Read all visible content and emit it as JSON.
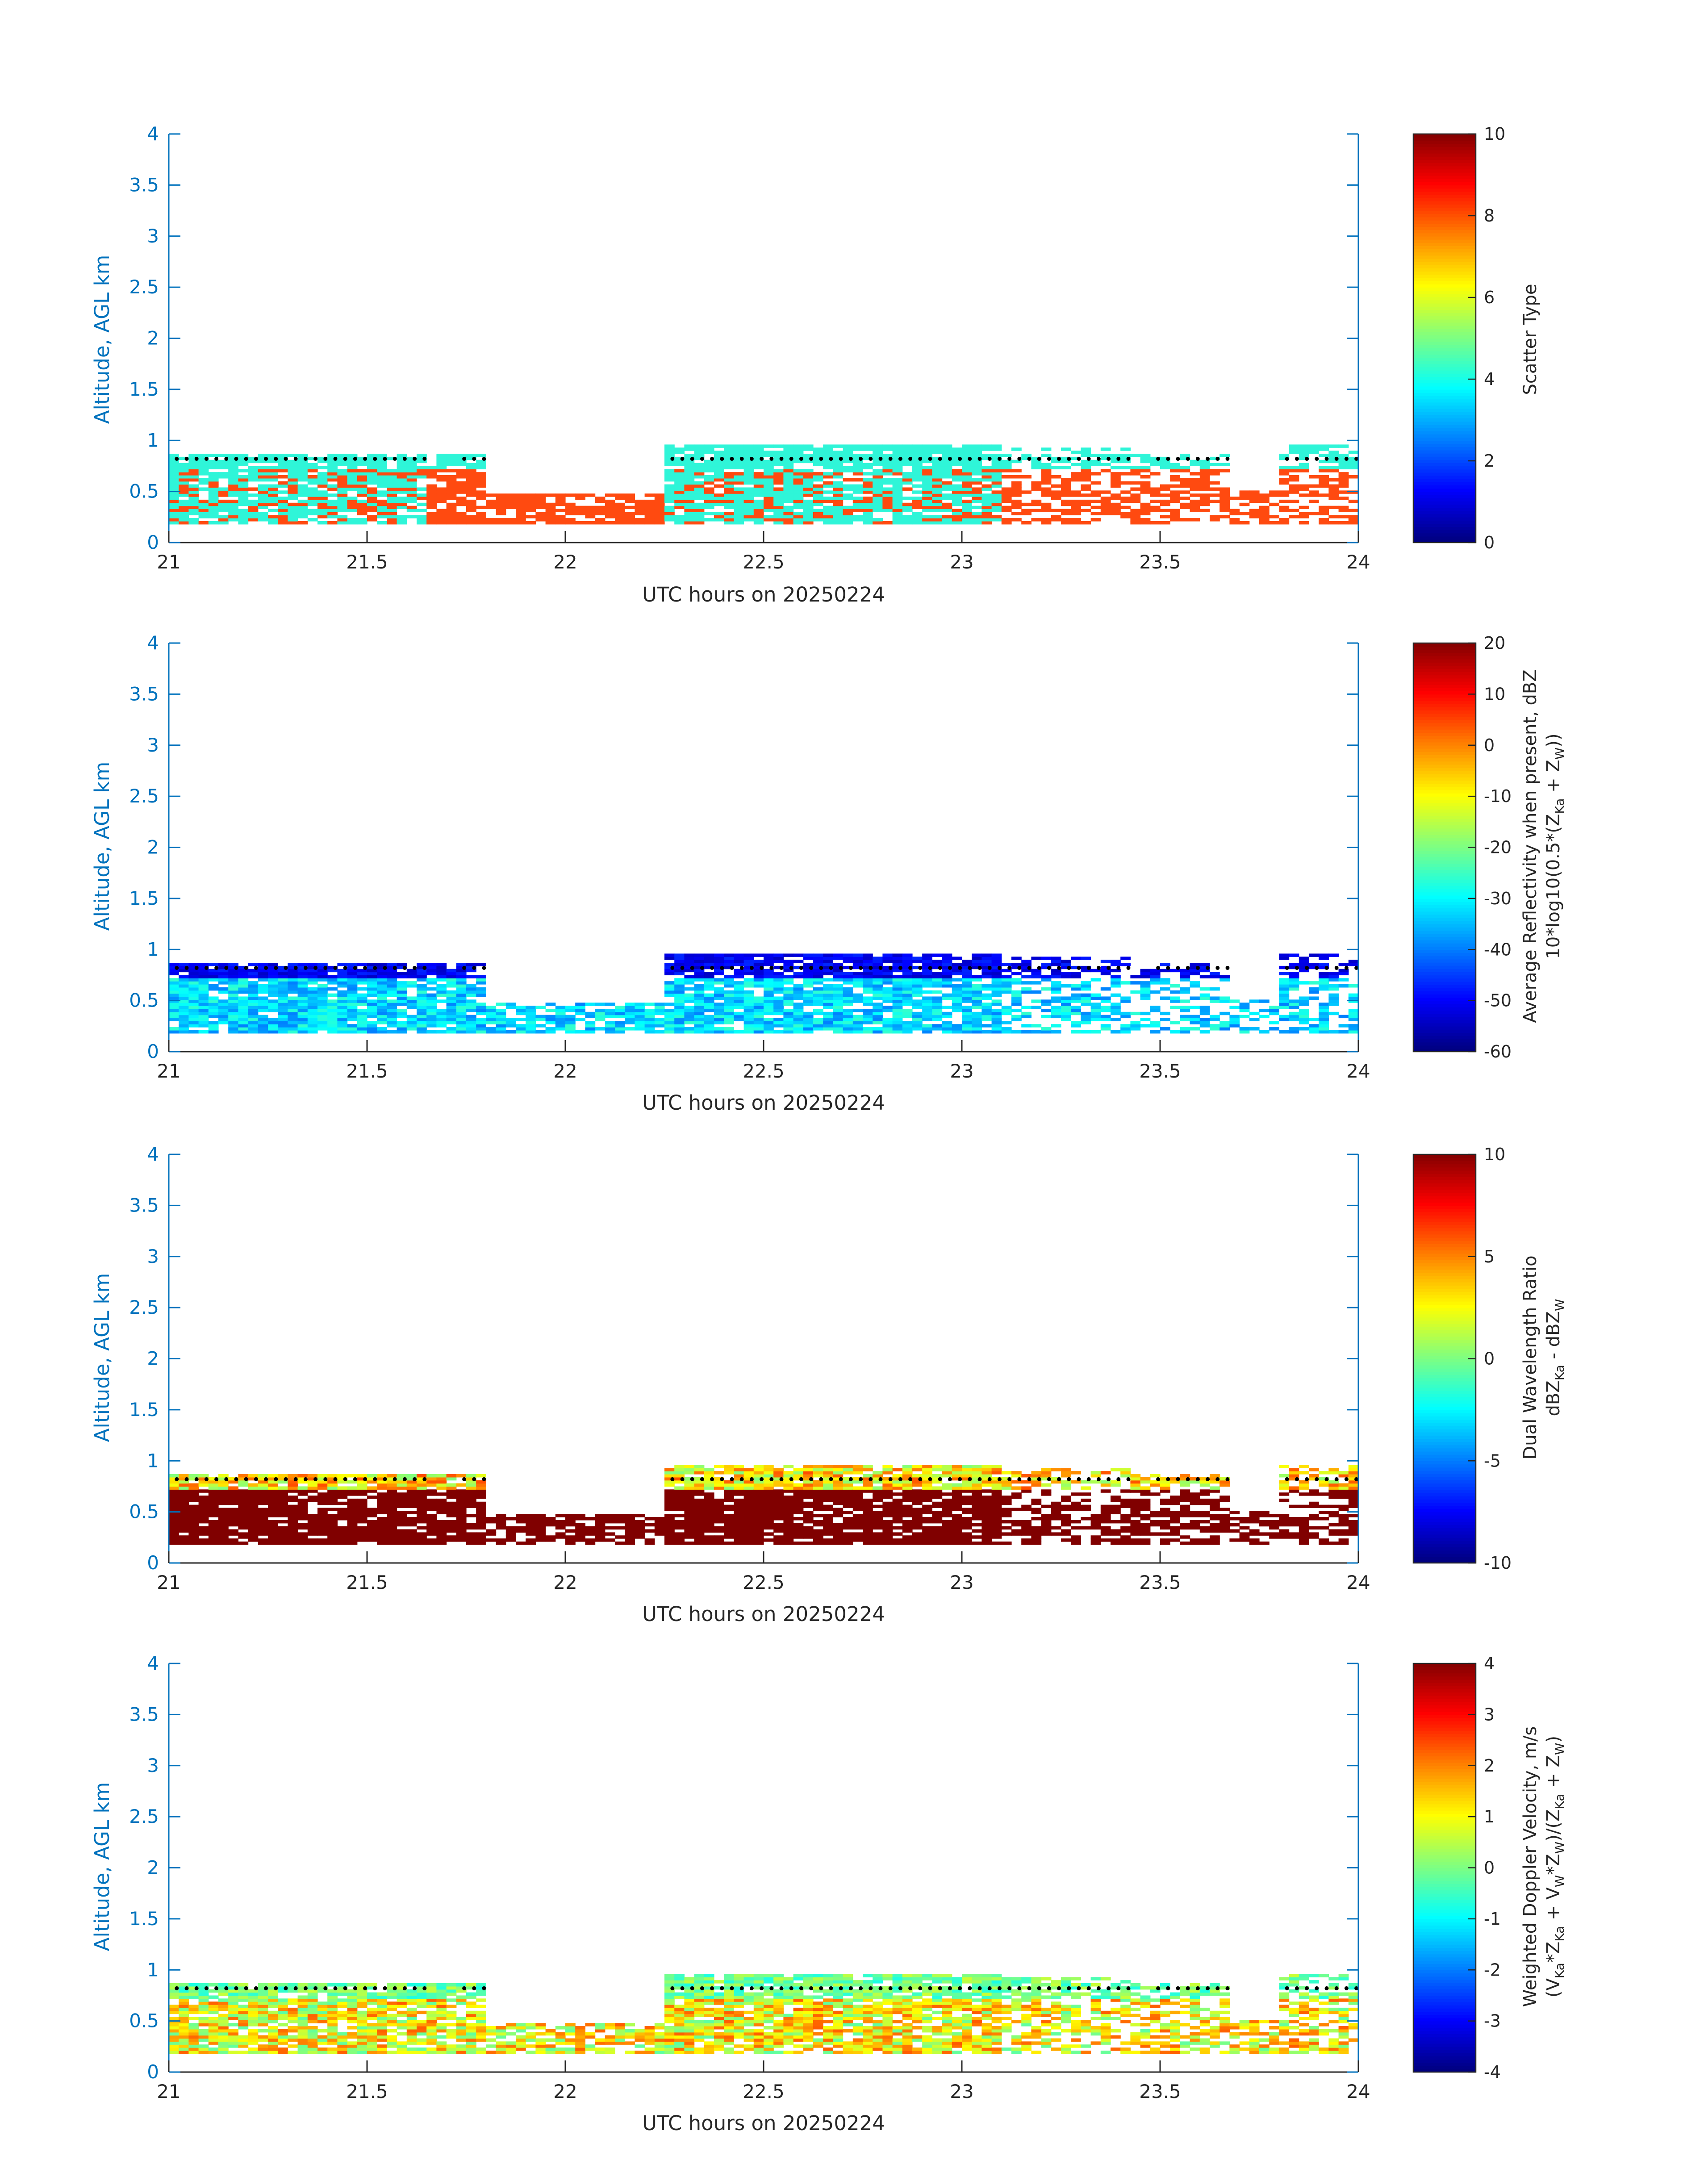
{
  "colors": {
    "axis_blue": "#0072bd",
    "dark_text": "#262626",
    "scatter_cyan": "#2ff5d8",
    "scatter_red": "#ff4a10",
    "cloud_base_dots": "#000000"
  },
  "chart_data": [
    {
      "type": "heatmap",
      "title": "",
      "xlabel": "UTC hours on 20250224",
      "ylabel": "Altitude, AGL km",
      "xlim": [
        21,
        24
      ],
      "ylim": [
        0,
        4
      ],
      "x_ticks": [
        "21",
        "21.5",
        "22",
        "22.5",
        "23",
        "23.5",
        "24"
      ],
      "y_ticks": [
        "0",
        "0.5",
        "1",
        "1.5",
        "2",
        "2.5",
        "3",
        "3.5",
        "4"
      ],
      "colormap": "jet",
      "clim": [
        0,
        10
      ],
      "colorbar_ticks": [
        "0",
        "2",
        "4",
        "6",
        "8",
        "10"
      ],
      "colorbar_label": "Scatter Type",
      "dominant_values": [
        {
          "value": 4,
          "region": "cloud layer ~0.2–0.9 km, 21.0–21.65 h and 22.25–23.1 h"
        },
        {
          "value": 8.5,
          "region": "drizzle/rain below cloud ~0.2–0.5 km, 21.6–22.3 h and 23.1–24 h"
        }
      ],
      "cloud_base_km": 0.82
    },
    {
      "type": "heatmap",
      "title": "",
      "xlabel": "UTC hours on 20250224",
      "ylabel": "Altitude, AGL km",
      "xlim": [
        21,
        24
      ],
      "ylim": [
        0,
        4
      ],
      "x_ticks": [
        "21",
        "21.5",
        "22",
        "22.5",
        "23",
        "23.5",
        "24"
      ],
      "y_ticks": [
        "0",
        "0.5",
        "1",
        "1.5",
        "2",
        "2.5",
        "3",
        "3.5",
        "4"
      ],
      "colormap": "jet",
      "clim": [
        -60,
        20
      ],
      "colorbar_ticks": [
        "-60",
        "-50",
        "-40",
        "-30",
        "-20",
        "-10",
        "0",
        "10",
        "20"
      ],
      "colorbar_label": [
        "Average Reflectivity when present, dBZ",
        "10*log10(0.5*(Z",
        "Ka",
        " + Z",
        "W",
        "))"
      ],
      "dominant_values": [
        {
          "value": -52,
          "region": "cloud top ~0.85–1.0 km"
        },
        {
          "value": -35,
          "region": "lower layer ~0.2–0.6 km"
        }
      ],
      "cloud_base_km": 0.82
    },
    {
      "type": "heatmap",
      "title": "",
      "xlabel": "UTC hours on 20250224",
      "ylabel": "Altitude, AGL km",
      "xlim": [
        21,
        24
      ],
      "ylim": [
        0,
        4
      ],
      "x_ticks": [
        "21",
        "21.5",
        "22",
        "22.5",
        "23",
        "23.5",
        "24"
      ],
      "y_ticks": [
        "0",
        "0.5",
        "1",
        "1.5",
        "2",
        "2.5",
        "3",
        "3.5",
        "4"
      ],
      "colormap": "jet",
      "clim": [
        -10,
        10
      ],
      "colorbar_ticks": [
        "-10",
        "-5",
        "0",
        "5",
        "10"
      ],
      "colorbar_label": [
        "Dual Wavelength Ratio",
        "dBZ",
        "Ka",
        " - dBZ",
        "W"
      ],
      "dominant_values": [
        {
          "value": 2,
          "region": "cloud layer ~0.75–0.95 km"
        },
        {
          "value": 10,
          "region": "below cloud ~0.2–0.65 km"
        }
      ],
      "cloud_base_km": 0.82
    },
    {
      "type": "heatmap",
      "title": "",
      "xlabel": "UTC hours on 20250224",
      "ylabel": "Altitude, AGL km",
      "xlim": [
        21,
        24
      ],
      "ylim": [
        0,
        4
      ],
      "x_ticks": [
        "21",
        "21.5",
        "22",
        "22.5",
        "23",
        "23.5",
        "24"
      ],
      "y_ticks": [
        "0",
        "0.5",
        "1",
        "1.5",
        "2",
        "2.5",
        "3",
        "3.5",
        "4"
      ],
      "colormap": "jet",
      "clim": [
        -4,
        4
      ],
      "colorbar_ticks": [
        "-4",
        "-3",
        "-2",
        "-1",
        "0",
        "1",
        "2",
        "3",
        "4"
      ],
      "colorbar_label": [
        "Weighted Doppler Velocity, m/s",
        "(V",
        "Ka",
        "*Z",
        "Ka",
        " + V",
        "W",
        "*Z",
        "W",
        ")/(Z",
        "Ka",
        " + Z",
        "W",
        ")"
      ],
      "dominant_values": [
        {
          "value": -0.2,
          "region": "cloud layer"
        },
        {
          "value": 0.6,
          "region": "below cloud, scattered 1–3 m/s"
        }
      ],
      "cloud_base_km": 0.82
    }
  ]
}
